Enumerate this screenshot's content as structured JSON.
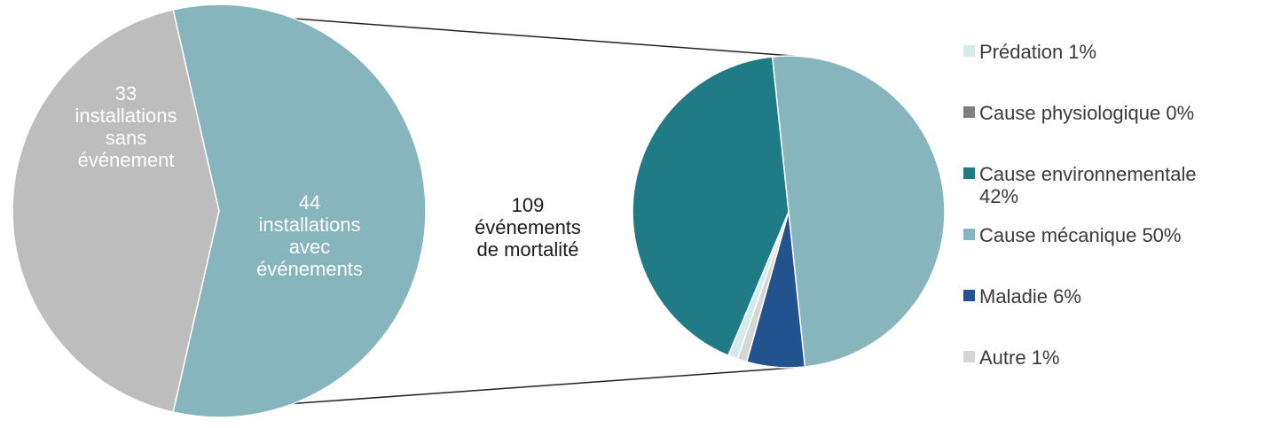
{
  "chart_data": [
    {
      "type": "pie",
      "slices": [
        {
          "label_lines": [
            "33",
            "installations",
            "sans",
            "événement"
          ],
          "value": 33,
          "color": "#bdbdbd"
        },
        {
          "label_lines": [
            "44",
            "installations",
            "avec",
            "événements"
          ],
          "value": 44,
          "color": "#87b5bd"
        }
      ]
    },
    {
      "type": "pie",
      "center_text": [
        "109",
        "événements",
        "de mortalité"
      ],
      "slices": [
        {
          "name": "Prédation",
          "pct": 1,
          "color": "#d3e9ea"
        },
        {
          "name": "Cause physiologique",
          "pct": 0,
          "color": "#7f7f7f"
        },
        {
          "name": "Cause environnementale",
          "pct": 42,
          "color": "#1f7b86"
        },
        {
          "name": "Cause mécanique",
          "pct": 50,
          "color": "#87b5bd"
        },
        {
          "name": "Maladie",
          "pct": 6,
          "color": "#23538f"
        },
        {
          "name": "Autre",
          "pct": 1,
          "color": "#d6d6d6"
        }
      ],
      "legend": [
        {
          "lines": [
            "Prédation 1%"
          ],
          "color": "#d3e9ea"
        },
        {
          "lines": [
            "Cause physiologique 0%"
          ],
          "color": "#7f7f7f"
        },
        {
          "lines": [
            "Cause environnementale",
            "42%"
          ],
          "color": "#1f7b86"
        },
        {
          "lines": [
            "Cause mécanique 50%"
          ],
          "color": "#87b5bd"
        },
        {
          "lines": [
            "Maladie 6%"
          ],
          "color": "#23538f"
        },
        {
          "lines": [
            "Autre 1%"
          ],
          "color": "#d6d6d6"
        }
      ]
    }
  ]
}
